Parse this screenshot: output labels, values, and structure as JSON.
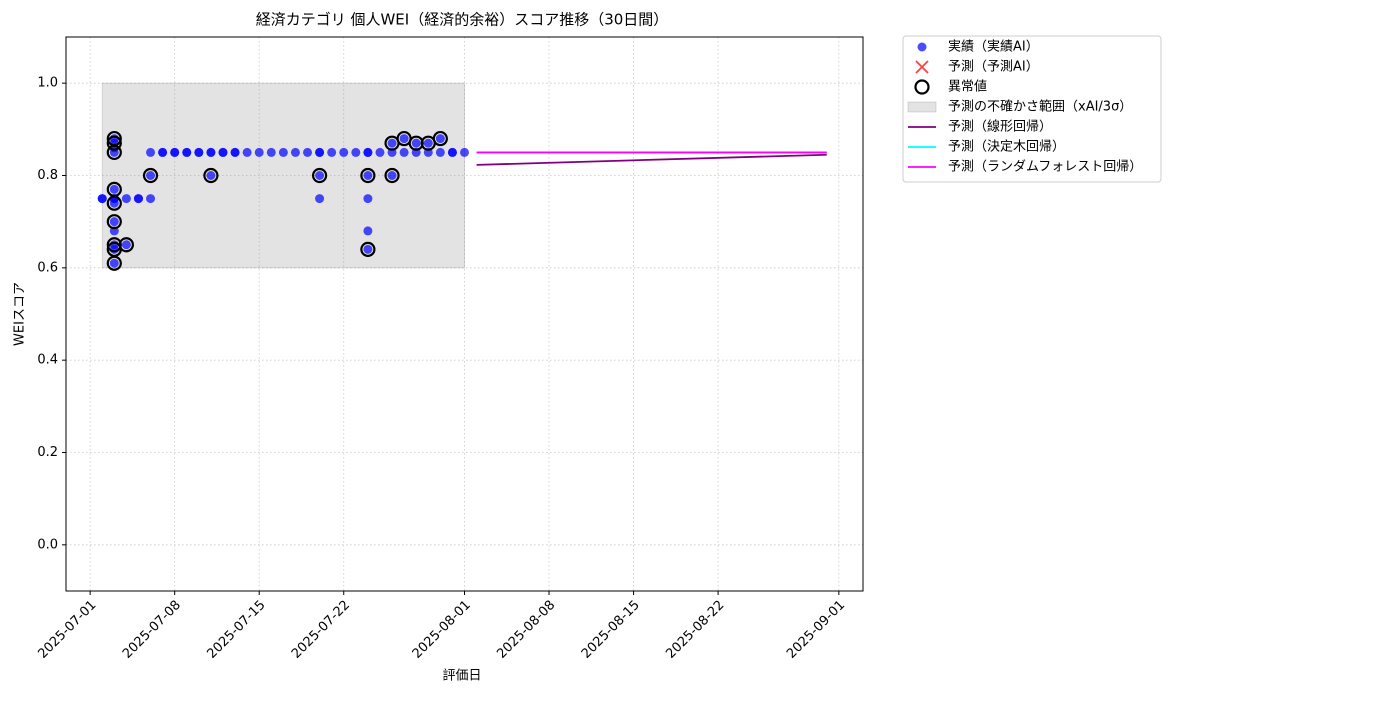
{
  "chart_data": {
    "type": "scatter",
    "title": "経済カテゴリ 個人WEI（経済的余裕）スコア推移（30日間）",
    "x_label": "評価日",
    "y_label": "WEIスコア",
    "xlim": [
      "2025-06-29",
      "2025-09-03"
    ],
    "xticks": [
      "2025-07-01",
      "2025-07-08",
      "2025-07-15",
      "2025-07-22",
      "2025-08-01",
      "2025-08-08",
      "2025-08-15",
      "2025-08-22",
      "2025-09-01"
    ],
    "ylim": [
      -0.1,
      1.1
    ],
    "yticks": [
      {
        "value": 0,
        "label": "0.0"
      },
      0.2,
      0.4,
      0.6,
      0.8,
      {
        "value": 1,
        "label": "1.0"
      }
    ],
    "grid": true,
    "legend": "outside-upper-right",
    "series": [
      {
        "name": "実績（実績AI）",
        "type": "scatter",
        "color": "#0000ff",
        "x": [
          "2025-07-02",
          "2025-07-02",
          "2025-07-03",
          "2025-07-03",
          "2025-07-03",
          "2025-07-03",
          "2025-07-03",
          "2025-07-03",
          "2025-07-03",
          "2025-07-03",
          "2025-07-03",
          "2025-07-03",
          "2025-07-03",
          "2025-07-03",
          "2025-07-03",
          "2025-07-04",
          "2025-07-04",
          "2025-07-05",
          "2025-07-05",
          "2025-07-06",
          "2025-07-06",
          "2025-07-06",
          "2025-07-07",
          "2025-07-07",
          "2025-07-08",
          "2025-07-08",
          "2025-07-09",
          "2025-07-09",
          "2025-07-10",
          "2025-07-10",
          "2025-07-11",
          "2025-07-11",
          "2025-07-12",
          "2025-07-12",
          "2025-07-13",
          "2025-07-13",
          "2025-07-14",
          "2025-07-15",
          "2025-07-16",
          "2025-07-17",
          "2025-07-18",
          "2025-07-19",
          "2025-07-20",
          "2025-07-20",
          "2025-07-21",
          "2025-07-22",
          "2025-07-23",
          "2025-07-24",
          "2025-07-24",
          "2025-07-25",
          "2025-07-26",
          "2025-07-27",
          "2025-07-28",
          "2025-07-29",
          "2025-07-30",
          "2025-07-31",
          "2025-07-31",
          "2025-08-01",
          "2025-07-11",
          "2025-07-20",
          "2025-07-20",
          "2025-07-24",
          "2025-07-24",
          "2025-07-24",
          "2025-07-24",
          "2025-07-26",
          "2025-07-26",
          "2025-07-27",
          "2025-07-28",
          "2025-07-29",
          "2025-07-30"
        ],
        "values": [
          0.75,
          0.75,
          0.75,
          0.88,
          0.87,
          0.86,
          0.85,
          0.77,
          0.75,
          0.74,
          0.7,
          0.68,
          0.65,
          0.64,
          0.61,
          0.65,
          0.75,
          0.75,
          0.75,
          0.75,
          0.8,
          0.85,
          0.85,
          0.85,
          0.85,
          0.85,
          0.85,
          0.85,
          0.85,
          0.85,
          0.85,
          0.85,
          0.85,
          0.85,
          0.85,
          0.85,
          0.85,
          0.85,
          0.85,
          0.85,
          0.85,
          0.85,
          0.85,
          0.85,
          0.85,
          0.85,
          0.85,
          0.85,
          0.85,
          0.85,
          0.85,
          0.85,
          0.85,
          0.85,
          0.85,
          0.85,
          0.85,
          0.85,
          0.8,
          0.75,
          0.8,
          0.8,
          0.75,
          0.68,
          0.64,
          0.8,
          0.87,
          0.88,
          0.87,
          0.87,
          0.88
        ]
      },
      {
        "name": "予測（予測AI）",
        "type": "x-marker",
        "color": "#ff0000",
        "x": [],
        "values": []
      },
      {
        "name": "異常値",
        "type": "ring",
        "color": "#000000",
        "x": [
          "2025-07-03",
          "2025-07-03",
          "2025-07-03",
          "2025-07-03",
          "2025-07-03",
          "2025-07-03",
          "2025-07-03",
          "2025-07-03",
          "2025-07-03",
          "2025-07-04",
          "2025-07-06",
          "2025-07-11",
          "2025-07-20",
          "2025-07-24",
          "2025-07-24",
          "2025-07-26",
          "2025-07-26",
          "2025-07-27",
          "2025-07-28",
          "2025-07-29",
          "2025-07-30"
        ],
        "values": [
          0.88,
          0.87,
          0.85,
          0.77,
          0.74,
          0.7,
          0.65,
          0.64,
          0.61,
          0.65,
          0.8,
          0.8,
          0.8,
          0.8,
          0.64,
          0.8,
          0.87,
          0.88,
          0.87,
          0.87,
          0.88
        ]
      },
      {
        "name": "予測の不確かさ範囲（xAI/3σ）",
        "type": "band",
        "color": "#808080",
        "x": [
          "2025-07-02",
          "2025-08-01"
        ],
        "lower": [
          0.6,
          0.6
        ],
        "upper": [
          1.0,
          1.0
        ]
      },
      {
        "name": "予測（線形回帰）",
        "type": "line",
        "color": "#800080",
        "x": [
          "2025-08-02",
          "2025-08-31"
        ],
        "values": [
          0.823,
          0.845
        ]
      },
      {
        "name": "予測（決定木回帰）",
        "type": "line",
        "color": "#00ffff",
        "x": [
          "2025-08-02",
          "2025-08-31"
        ],
        "values": [
          0.85,
          0.85
        ]
      },
      {
        "name": "予測（ランダムフォレスト回帰）",
        "type": "line",
        "color": "#ff00ff",
        "x": [
          "2025-08-02",
          "2025-08-31"
        ],
        "values": [
          0.85,
          0.85
        ]
      }
    ]
  }
}
